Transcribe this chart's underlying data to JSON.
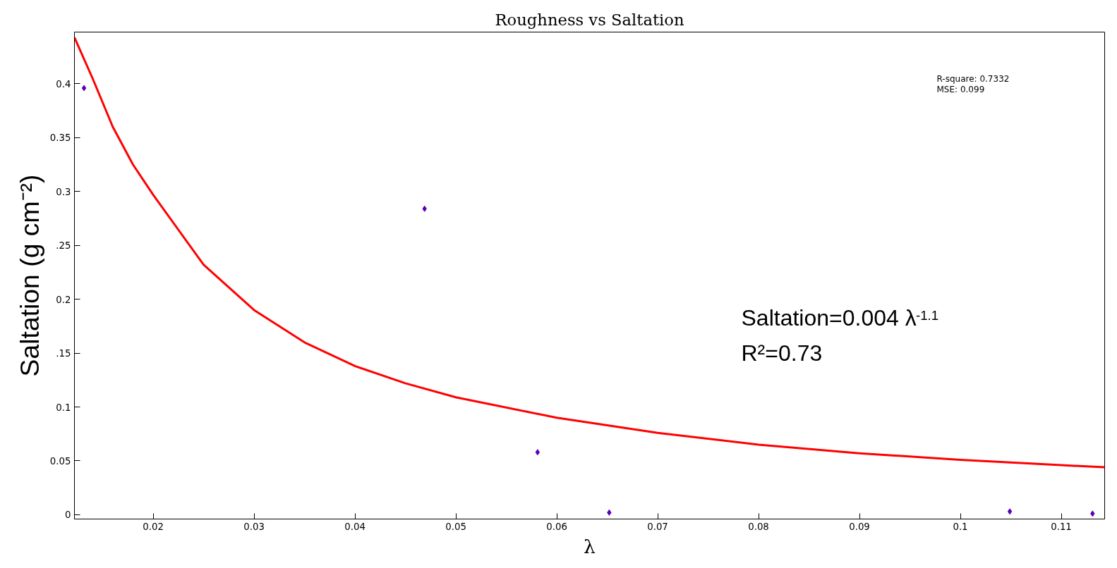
{
  "chart_data": {
    "type": "scatter",
    "title": "Roughness vs Saltation",
    "xlabel": "λ",
    "ylabel": "Saltation (g cm⁻²)",
    "xlim": [
      0.0122,
      0.1143
    ],
    "ylim": [
      -0.004,
      0.448
    ],
    "xticks": [
      0.02,
      0.03,
      0.04,
      0.05,
      0.06,
      0.07,
      0.08,
      0.09,
      0.1,
      0.11
    ],
    "yticks": [
      0,
      0.05,
      0.1,
      {
        "value": 0.15,
        "label": ".15"
      },
      0.2,
      {
        "value": 0.25,
        "label": ".25"
      },
      0.3,
      0.35,
      0.4
    ],
    "marker": "diamond",
    "grid": false,
    "series": [
      {
        "color": "#5a00b4",
        "x": [
          0.01315,
          0.0469,
          0.0581,
          0.0652,
          0.1049,
          0.1131
        ],
        "values": [
          0.396,
          0.284,
          0.058,
          0.002,
          0.003,
          0.001
        ]
      },
      {
        "type": "line",
        "color": "#ff0000",
        "marker": "none",
        "x": [
          0.0122,
          0.014,
          0.016,
          0.018,
          0.02,
          0.025,
          0.03,
          0.035,
          0.04,
          0.045,
          0.05,
          0.06,
          0.07,
          0.08,
          0.09,
          0.1,
          0.11,
          0.1143
        ],
        "values": [
          0.443,
          0.405,
          0.36,
          0.325,
          0.297,
          0.232,
          0.19,
          0.16,
          0.138,
          0.122,
          0.109,
          0.09,
          0.076,
          0.065,
          0.057,
          0.051,
          0.046,
          0.044
        ]
      }
    ],
    "annotations": [
      "R-square: 0.7332",
      "MSE: 0.099",
      "Saltation=0.004 λ$^{-1.1}$",
      "R²=0.73"
    ]
  }
}
